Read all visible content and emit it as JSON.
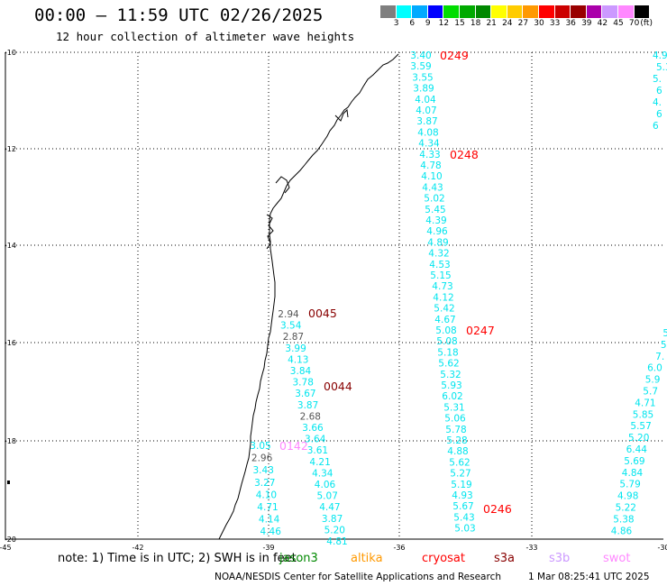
{
  "title": "00:00 – 11:59 UTC 02/26/2025",
  "subtitle": "12 hour collection of altimeter wave heights",
  "legend": {
    "unit": "(ft)",
    "items": [
      {
        "label": "3",
        "color": "#7f7f7f"
      },
      {
        "label": "6",
        "color": "#00ffff"
      },
      {
        "label": "9",
        "color": "#00aaff"
      },
      {
        "label": "12",
        "color": "#0000ff"
      },
      {
        "label": "15",
        "color": "#00dd00"
      },
      {
        "label": "18",
        "color": "#00aa00"
      },
      {
        "label": "21",
        "color": "#008800"
      },
      {
        "label": "24",
        "color": "#ffff00"
      },
      {
        "label": "27",
        "color": "#ffcc00"
      },
      {
        "label": "30",
        "color": "#ff9900"
      },
      {
        "label": "33",
        "color": "#ff0000"
      },
      {
        "label": "36",
        "color": "#cc0000"
      },
      {
        "label": "39",
        "color": "#990000"
      },
      {
        "label": "42",
        "color": "#aa00aa"
      },
      {
        "label": "45",
        "color": "#cc99ff"
      },
      {
        "label": "70",
        "color": "#ff88ff"
      },
      {
        "label": "",
        "color": "#000000"
      }
    ]
  },
  "axes": {
    "lat_labels": [
      "-10",
      "-12",
      "-14",
      "-16",
      "-18",
      "-20"
    ],
    "lon_labels": [
      "-45",
      "-42",
      "-39",
      "-36",
      "-33",
      "-30"
    ]
  },
  "passes": [
    {
      "label": "0249",
      "color": "#ff0000"
    },
    {
      "label": "0248",
      "color": "#ff0000"
    },
    {
      "label": "0247",
      "color": "#ff0000"
    },
    {
      "label": "0246",
      "color": "#ff0000"
    },
    {
      "label": "0045",
      "color": "#880000"
    },
    {
      "label": "0044",
      "color": "#880000"
    },
    {
      "label": "0142",
      "color": "#ff88ff"
    }
  ],
  "tracks": {
    "east_track": [
      "3.40",
      "3.59",
      "3.55",
      "3.89",
      "4.04",
      "4.07",
      "3.87",
      "4.08",
      "4.34",
      "4.33",
      "4.78",
      "4.10",
      "4.43",
      "5.02",
      "5.45",
      "4.39",
      "4.96",
      "4.89",
      "4.32",
      "4.53",
      "5.15",
      "4.73",
      "4.12",
      "5.42",
      "4.67",
      "5.08",
      "5.08",
      "5.18",
      "5.62",
      "5.32",
      "5.93",
      "6.02",
      "5.31",
      "5.06",
      "5.78",
      "5.28",
      "4.88",
      "5.62",
      "5.27",
      "5.19",
      "4.93",
      "5.67",
      "5.43",
      "5.03"
    ],
    "west_track": [
      "2.94",
      "3.54",
      "2.87",
      "3.99",
      "4.13",
      "3.84",
      "3.78",
      "3.67",
      "3.87",
      "2.68",
      "3.66",
      "3.64",
      "3.61",
      "4.21",
      "4.34",
      "4.06",
      "5.07",
      "4.47",
      "3.87",
      "5.20",
      "4.81"
    ],
    "coast_track": [
      "3.05",
      "2.96",
      "3.43",
      "3.27",
      "4.10",
      "4.71",
      "4.14",
      "4.46"
    ],
    "far_east_top": [
      "4.9",
      "5.3",
      "5.",
      "6",
      "4.",
      "6",
      "6"
    ],
    "far_east_bottom": [
      "5",
      "5",
      "7.",
      "6.0",
      "5.9",
      "5.7",
      "4.71",
      "5.85",
      "5.57",
      "5.20",
      "6.44",
      "5.69",
      "4.84",
      "5.79",
      "4.98",
      "5.22",
      "5.38",
      "4.86"
    ]
  },
  "footer": {
    "note": "note: 1) Time is in UTC; 2) SWH is in feet",
    "satellites": [
      {
        "label": "jason3",
        "color": "#008800"
      },
      {
        "label": "altika",
        "color": "#ff9900"
      },
      {
        "label": "cryosat",
        "color": "#ff0000"
      },
      {
        "label": "s3a",
        "color": "#880000"
      },
      {
        "label": "s3b",
        "color": "#cc99ff"
      },
      {
        "label": "swot",
        "color": "#ff88ff"
      }
    ],
    "credit": "NOAA/NESDIS Center for Satellite Applications and Research",
    "timestamp": "1 Mar 08:25:41 UTC 2025"
  }
}
